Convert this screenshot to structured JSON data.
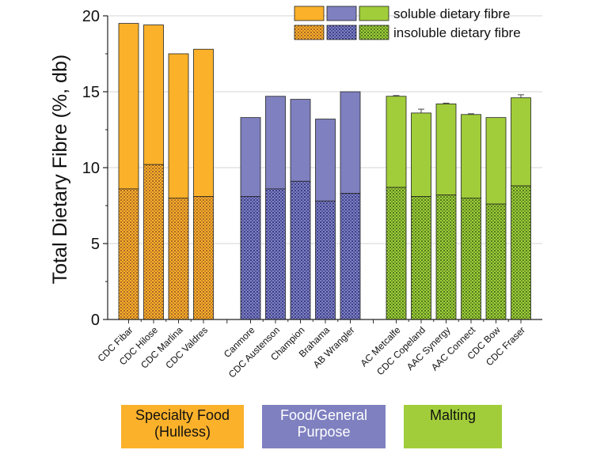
{
  "chart_data": {
    "type": "bar",
    "stacked": true,
    "ylabel": "Total Dietary Fibre (%, db)",
    "xlabel": "",
    "ylim": [
      0,
      20
    ],
    "yticks": [
      0,
      5,
      10,
      15,
      20
    ],
    "grid": true,
    "legend": {
      "placement": "top-right",
      "entries": [
        "soluble dietary fibre",
        "insoluble dietary fibre"
      ]
    },
    "series_names": [
      "insoluble dietary fibre",
      "soluble dietary fibre"
    ],
    "groups": [
      {
        "name": "specialty",
        "label_lines": [
          "Specialty Food",
          "(Hulless)"
        ],
        "color": "#FBB12A",
        "pattern_color": "#9A5A24",
        "categories": [
          "CDC Fibar",
          "CDC Hilose",
          "CDC Marlina",
          "CDC Valdres"
        ],
        "insoluble": [
          8.6,
          10.2,
          8.0,
          8.1
        ],
        "total": [
          19.5,
          19.4,
          17.5,
          17.8
        ],
        "error": [
          0,
          0,
          0,
          0
        ]
      },
      {
        "name": "food-general",
        "label_lines": [
          "Food/General",
          "Purpose"
        ],
        "color": "#7F80C0",
        "pattern_color": "#2E3280",
        "categories": [
          "Canmore",
          "CDC Austenson",
          "Champion",
          "Brahama",
          "AB Wrangler"
        ],
        "insoluble": [
          8.1,
          8.6,
          9.1,
          7.8,
          8.3
        ],
        "total": [
          13.3,
          14.7,
          14.5,
          13.2,
          15.0
        ],
        "error": [
          0,
          0,
          0,
          0,
          0
        ]
      },
      {
        "name": "malting",
        "label_lines": [
          "Malting"
        ],
        "color": "#A1CD3A",
        "pattern_color": "#3F6B18",
        "categories": [
          "AC Metcalfe",
          "CDC Copeland",
          "AAC Synergy",
          "AAC Connect",
          "CDC Bow",
          "CDC Fraser"
        ],
        "insoluble": [
          8.7,
          8.1,
          8.2,
          8.0,
          7.6,
          8.8
        ],
        "total": [
          14.7,
          13.6,
          14.2,
          13.5,
          13.3,
          14.6
        ],
        "error": [
          0.05,
          0.25,
          0.05,
          0.05,
          0,
          0.2
        ]
      }
    ]
  }
}
